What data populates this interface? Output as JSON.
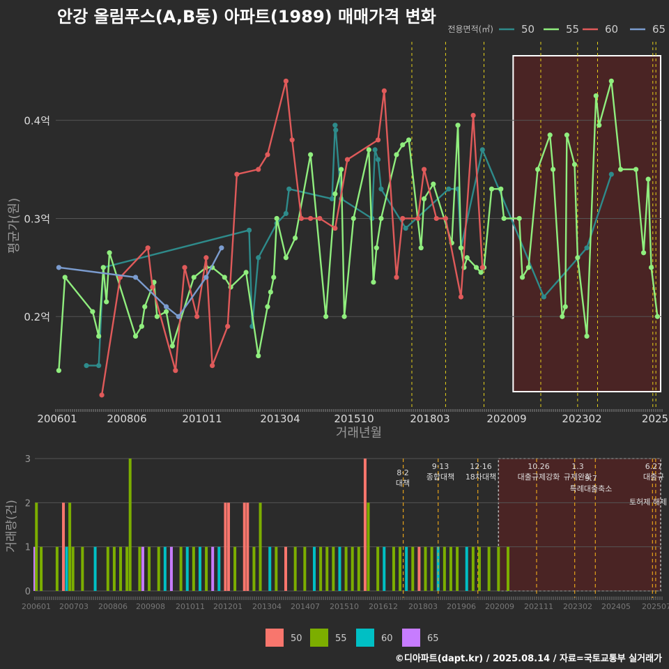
{
  "title": "안강 올림푸스(A,B동) 아파트(1989) 매매가격 변화",
  "footer": "©디아파트(dapt.kr) / 2025.08.14 / 자료=국토교통부 실거래가",
  "chart_data": [
    {
      "type": "line",
      "ylabel": "평균가(원)",
      "xlabel": "거래년월",
      "yticks": [
        {
          "v": 0.2,
          "label": "0.2억"
        },
        {
          "v": 0.3,
          "label": "0.3억"
        },
        {
          "v": 0.4,
          "label": "0.4억"
        }
      ],
      "ylim": [
        0.105,
        0.48
      ],
      "xlim": [
        2006.0,
        2025.75
      ],
      "xticks": [
        "200601",
        "200806",
        "201011",
        "201304",
        "201510",
        "201803",
        "202009",
        "202302",
        "2025"
      ],
      "legend": {
        "title": "전용면적(㎡)",
        "position": "top-right"
      },
      "series": [
        {
          "name": "50",
          "color": "#2e8b8b",
          "values": [
            [
              2007.0,
              0.15
            ],
            [
              2007.4,
              0.15
            ],
            [
              2007.55,
              0.25
            ],
            [
              2012.3,
              0.288
            ],
            [
              2012.4,
              0.19
            ],
            [
              2012.6,
              0.26
            ],
            [
              2013.2,
              0.295
            ],
            [
              2013.5,
              0.305
            ],
            [
              2013.6,
              0.33
            ],
            [
              2015.0,
              0.32
            ],
            [
              2015.1,
              0.395
            ],
            [
              2015.12,
              0.39
            ],
            [
              2015.3,
              0.32
            ],
            [
              2016.3,
              0.3
            ],
            [
              2016.4,
              0.37
            ],
            [
              2016.5,
              0.36
            ],
            [
              2016.6,
              0.33
            ],
            [
              2017.4,
              0.29
            ],
            [
              2018.8,
              0.33
            ],
            [
              2019.1,
              0.33
            ],
            [
              2019.2,
              0.27
            ],
            [
              2019.9,
              0.37
            ],
            [
              2021.9,
              0.22
            ],
            [
              2023.3,
              0.27
            ],
            [
              2024.1,
              0.345
            ]
          ]
        },
        {
          "name": "55",
          "color": "#90ee7e",
          "values": [
            [
              2006.1,
              0.145
            ],
            [
              2006.3,
              0.24
            ],
            [
              2007.2,
              0.205
            ],
            [
              2007.4,
              0.18
            ],
            [
              2007.55,
              0.25
            ],
            [
              2007.65,
              0.215
            ],
            [
              2007.75,
              0.265
            ],
            [
              2008.6,
              0.18
            ],
            [
              2008.8,
              0.19
            ],
            [
              2008.9,
              0.21
            ],
            [
              2009.2,
              0.235
            ],
            [
              2009.3,
              0.2
            ],
            [
              2009.6,
              0.205
            ],
            [
              2009.8,
              0.17
            ],
            [
              2010.5,
              0.24
            ],
            [
              2010.9,
              0.25
            ],
            [
              2011.1,
              0.25
            ],
            [
              2011.5,
              0.24
            ],
            [
              2011.7,
              0.23
            ],
            [
              2012.2,
              0.245
            ],
            [
              2012.6,
              0.16
            ],
            [
              2012.9,
              0.21
            ],
            [
              2013.0,
              0.225
            ],
            [
              2013.1,
              0.24
            ],
            [
              2013.2,
              0.3
            ],
            [
              2013.5,
              0.26
            ],
            [
              2013.8,
              0.28
            ],
            [
              2014.3,
              0.365
            ],
            [
              2014.8,
              0.2
            ],
            [
              2015.1,
              0.325
            ],
            [
              2015.3,
              0.35
            ],
            [
              2015.4,
              0.2
            ],
            [
              2015.7,
              0.3
            ],
            [
              2016.2,
              0.37
            ],
            [
              2016.35,
              0.235
            ],
            [
              2016.45,
              0.27
            ],
            [
              2016.6,
              0.3
            ],
            [
              2017.1,
              0.365
            ],
            [
              2017.3,
              0.375
            ],
            [
              2017.5,
              0.38
            ],
            [
              2017.9,
              0.27
            ],
            [
              2018.0,
              0.32
            ],
            [
              2018.3,
              0.335
            ],
            [
              2018.9,
              0.275
            ],
            [
              2019.1,
              0.395
            ],
            [
              2019.2,
              0.27
            ],
            [
              2019.3,
              0.25
            ],
            [
              2019.4,
              0.26
            ],
            [
              2019.7,
              0.25
            ],
            [
              2019.85,
              0.245
            ],
            [
              2019.95,
              0.25
            ],
            [
              2020.2,
              0.33
            ],
            [
              2020.5,
              0.33
            ],
            [
              2020.6,
              0.3
            ],
            [
              2021.1,
              0.3
            ],
            [
              2021.2,
              0.24
            ],
            [
              2021.4,
              0.25
            ],
            [
              2021.7,
              0.35
            ],
            [
              2022.1,
              0.385
            ],
            [
              2022.2,
              0.35
            ],
            [
              2022.5,
              0.2
            ],
            [
              2022.6,
              0.21
            ],
            [
              2022.65,
              0.385
            ],
            [
              2022.9,
              0.355
            ],
            [
              2023.0,
              0.26
            ],
            [
              2023.3,
              0.18
            ],
            [
              2023.6,
              0.425
            ],
            [
              2023.7,
              0.395
            ],
            [
              2024.1,
              0.44
            ],
            [
              2024.4,
              0.35
            ],
            [
              2024.9,
              0.35
            ],
            [
              2025.15,
              0.265
            ],
            [
              2025.3,
              0.34
            ],
            [
              2025.4,
              0.25
            ],
            [
              2025.6,
              0.2
            ]
          ]
        },
        {
          "name": "60",
          "color": "#e05a5a",
          "values": [
            [
              2007.5,
              0.12
            ],
            [
              2008.1,
              0.24
            ],
            [
              2009.0,
              0.27
            ],
            [
              2009.15,
              0.23
            ],
            [
              2009.9,
              0.145
            ],
            [
              2010.2,
              0.25
            ],
            [
              2010.6,
              0.2
            ],
            [
              2010.9,
              0.26
            ],
            [
              2011.1,
              0.15
            ],
            [
              2011.6,
              0.19
            ],
            [
              2011.9,
              0.345
            ],
            [
              2012.6,
              0.35
            ],
            [
              2012.9,
              0.365
            ],
            [
              2013.5,
              0.44
            ],
            [
              2013.7,
              0.38
            ],
            [
              2014.0,
              0.3
            ],
            [
              2014.3,
              0.3
            ],
            [
              2014.6,
              0.3
            ],
            [
              2015.1,
              0.29
            ],
            [
              2015.5,
              0.36
            ],
            [
              2016.5,
              0.38
            ],
            [
              2016.7,
              0.43
            ],
            [
              2017.1,
              0.24
            ],
            [
              2017.3,
              0.3
            ],
            [
              2017.8,
              0.3
            ],
            [
              2018.0,
              0.35
            ],
            [
              2018.4,
              0.3
            ],
            [
              2018.7,
              0.3
            ],
            [
              2019.2,
              0.22
            ],
            [
              2019.6,
              0.405
            ],
            [
              2019.9,
              0.25
            ]
          ]
        },
        {
          "name": "65",
          "color": "#7b9ccf",
          "values": [
            [
              2006.1,
              0.25
            ],
            [
              2008.6,
              0.24
            ],
            [
              2009.6,
              0.21
            ],
            [
              2010.0,
              0.2
            ],
            [
              2010.9,
              0.24
            ],
            [
              2011.4,
              0.27
            ]
          ]
        }
      ],
      "highlight_window": [
        2020.9,
        2025.75
      ],
      "policy_dates": [
        2017.6,
        2018.7,
        2019.95,
        2021.8,
        2023.0,
        2023.65,
        2025.45,
        2025.55
      ]
    },
    {
      "type": "bar",
      "ylabel": "거래량(건)",
      "xticks": [
        "200601",
        "200703",
        "200806",
        "200908",
        "201011",
        "201201",
        "201304",
        "201407",
        "201510",
        "201612",
        "201803",
        "201906",
        "202009",
        "202111",
        "202302",
        "202405",
        "202507"
      ],
      "yticks": [
        0,
        1,
        2,
        3
      ],
      "ylim": [
        0,
        3.1
      ],
      "legend": {
        "position": "bottom",
        "entries": [
          {
            "name": "50",
            "color": "#f8766d"
          },
          {
            "name": "55",
            "color": "#7cae00"
          },
          {
            "name": "60",
            "color": "#00bfc4"
          },
          {
            "name": "65",
            "color": "#c77cff"
          }
        ]
      },
      "policy_labels": [
        {
          "date": "8·2",
          "text": "대책"
        },
        {
          "date": "9·13",
          "text": "종합대책"
        },
        {
          "date": "12·16",
          "text": "18차대책"
        },
        {
          "date": "10.26",
          "text": "대출규제강화"
        },
        {
          "date": "1.3",
          "text": "규제완화"
        },
        {
          "date": "9.7",
          "text": "특례대출축소"
        },
        {
          "date": "",
          "text": "토허제 해제"
        },
        {
          "date": "6.27",
          "text": "대출규"
        }
      ],
      "bars": [
        {
          "t": 2006.0,
          "s": "65",
          "v": 1
        },
        {
          "t": 2006.05,
          "s": "55",
          "v": 2
        },
        {
          "t": 2006.2,
          "s": "55",
          "v": 1
        },
        {
          "t": 2006.7,
          "s": "55",
          "v": 1
        },
        {
          "t": 2006.9,
          "s": "50",
          "v": 2
        },
        {
          "t": 2007.0,
          "s": "60",
          "v": 1
        },
        {
          "t": 2007.1,
          "s": "55",
          "v": 2
        },
        {
          "t": 2007.2,
          "s": "55",
          "v": 1
        },
        {
          "t": 2007.5,
          "s": "55",
          "v": 1
        },
        {
          "t": 2007.9,
          "s": "60",
          "v": 1
        },
        {
          "t": 2008.3,
          "s": "55",
          "v": 1
        },
        {
          "t": 2008.5,
          "s": "55",
          "v": 1
        },
        {
          "t": 2008.7,
          "s": "55",
          "v": 1
        },
        {
          "t": 2008.9,
          "s": "55",
          "v": 1
        },
        {
          "t": 2009.0,
          "s": "55",
          "v": 3
        },
        {
          "t": 2009.3,
          "s": "55",
          "v": 1
        },
        {
          "t": 2009.4,
          "s": "65",
          "v": 1
        },
        {
          "t": 2009.6,
          "s": "55",
          "v": 1
        },
        {
          "t": 2009.9,
          "s": "55",
          "v": 1
        },
        {
          "t": 2010.1,
          "s": "60",
          "v": 1
        },
        {
          "t": 2010.3,
          "s": "65",
          "v": 1
        },
        {
          "t": 2010.6,
          "s": "55",
          "v": 1
        },
        {
          "t": 2010.8,
          "s": "60",
          "v": 1
        },
        {
          "t": 2011.0,
          "s": "55",
          "v": 1
        },
        {
          "t": 2011.2,
          "s": "60",
          "v": 1
        },
        {
          "t": 2011.4,
          "s": "55",
          "v": 1
        },
        {
          "t": 2011.6,
          "s": "65",
          "v": 1
        },
        {
          "t": 2011.8,
          "s": "60",
          "v": 1
        },
        {
          "t": 2012.0,
          "s": "50",
          "v": 2
        },
        {
          "t": 2012.1,
          "s": "50",
          "v": 2
        },
        {
          "t": 2012.3,
          "s": "55",
          "v": 1
        },
        {
          "t": 2012.6,
          "s": "50",
          "v": 2
        },
        {
          "t": 2012.7,
          "s": "50",
          "v": 2
        },
        {
          "t": 2012.9,
          "s": "55",
          "v": 1
        },
        {
          "t": 2013.1,
          "s": "55",
          "v": 2
        },
        {
          "t": 2013.4,
          "s": "60",
          "v": 1
        },
        {
          "t": 2013.6,
          "s": "55",
          "v": 1
        },
        {
          "t": 2013.9,
          "s": "50",
          "v": 1
        },
        {
          "t": 2014.2,
          "s": "55",
          "v": 1
        },
        {
          "t": 2014.5,
          "s": "55",
          "v": 1
        },
        {
          "t": 2014.8,
          "s": "60",
          "v": 1
        },
        {
          "t": 2015.0,
          "s": "55",
          "v": 1
        },
        {
          "t": 2015.2,
          "s": "55",
          "v": 1
        },
        {
          "t": 2015.4,
          "s": "55",
          "v": 1
        },
        {
          "t": 2015.6,
          "s": "60",
          "v": 1
        },
        {
          "t": 2015.8,
          "s": "55",
          "v": 1
        },
        {
          "t": 2016.0,
          "s": "55",
          "v": 1
        },
        {
          "t": 2016.2,
          "s": "55",
          "v": 1
        },
        {
          "t": 2016.4,
          "s": "50",
          "v": 3
        },
        {
          "t": 2016.5,
          "s": "55",
          "v": 2
        },
        {
          "t": 2016.8,
          "s": "55",
          "v": 1
        },
        {
          "t": 2017.0,
          "s": "60",
          "v": 1
        },
        {
          "t": 2017.3,
          "s": "55",
          "v": 1
        },
        {
          "t": 2017.5,
          "s": "55",
          "v": 1
        },
        {
          "t": 2017.7,
          "s": "60",
          "v": 1
        },
        {
          "t": 2017.9,
          "s": "55",
          "v": 1
        },
        {
          "t": 2018.1,
          "s": "50",
          "v": 1
        },
        {
          "t": 2018.3,
          "s": "55",
          "v": 1
        },
        {
          "t": 2018.5,
          "s": "55",
          "v": 1
        },
        {
          "t": 2018.7,
          "s": "60",
          "v": 1
        },
        {
          "t": 2018.9,
          "s": "55",
          "v": 1
        },
        {
          "t": 2019.1,
          "s": "55",
          "v": 1
        },
        {
          "t": 2019.3,
          "s": "55",
          "v": 1
        },
        {
          "t": 2019.6,
          "s": "60",
          "v": 1
        },
        {
          "t": 2019.8,
          "s": "55",
          "v": 1
        },
        {
          "t": 2020.0,
          "s": "55",
          "v": 1
        },
        {
          "t": 2020.3,
          "s": "55",
          "v": 1
        },
        {
          "t": 2020.6,
          "s": "55",
          "v": 1
        },
        {
          "t": 2020.9,
          "s": "55",
          "v": 1
        }
      ]
    }
  ]
}
